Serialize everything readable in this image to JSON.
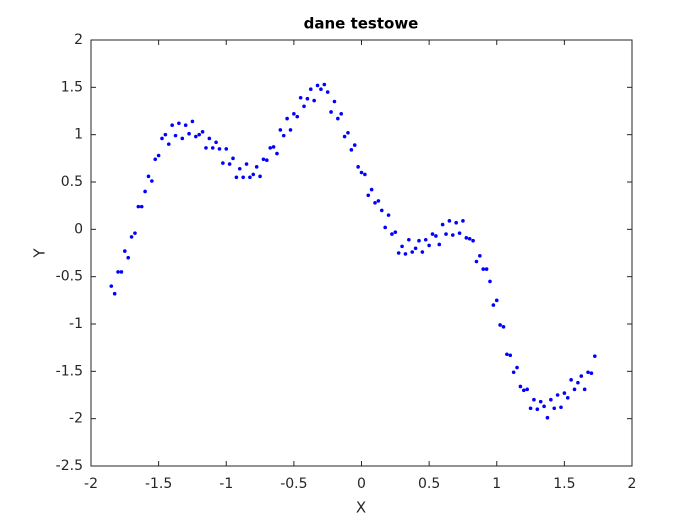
{
  "chart_data": {
    "type": "scatter",
    "title": "dane testowe",
    "x_label": "X",
    "y_label": "Y",
    "color": "#0000ff",
    "x": [
      -1.85,
      -1.825,
      -1.8,
      -1.775,
      -1.75,
      -1.725,
      -1.7,
      -1.675,
      -1.65,
      -1.625,
      -1.6,
      -1.575,
      -1.55,
      -1.525,
      -1.5,
      -1.475,
      -1.45,
      -1.425,
      -1.4,
      -1.375,
      -1.35,
      -1.325,
      -1.3,
      -1.275,
      -1.25,
      -1.225,
      -1.2,
      -1.175,
      -1.15,
      -1.125,
      -1.1,
      -1.075,
      -1.05,
      -1.025,
      -1.0,
      -0.975,
      -0.95,
      -0.925,
      -0.9,
      -0.875,
      -0.85,
      -0.825,
      -0.8,
      -0.775,
      -0.75,
      -0.725,
      -0.7,
      -0.675,
      -0.65,
      -0.625,
      -0.6,
      -0.575,
      -0.55,
      -0.525,
      -0.5,
      -0.475,
      -0.45,
      -0.425,
      -0.4,
      -0.375,
      -0.35,
      -0.325,
      -0.3,
      -0.275,
      -0.25,
      -0.225,
      -0.2,
      -0.175,
      -0.15,
      -0.125,
      -0.1,
      -0.075,
      -0.05,
      -0.025,
      0,
      0.025,
      0.05,
      0.075,
      0.1,
      0.125,
      0.15,
      0.175,
      0.2,
      0.225,
      0.25,
      0.275,
      0.3,
      0.325,
      0.35,
      0.375,
      0.4,
      0.425,
      0.45,
      0.475,
      0.5,
      0.525,
      0.55,
      0.575,
      0.6,
      0.625,
      0.65,
      0.675,
      0.7,
      0.725,
      0.75,
      0.775,
      0.8,
      0.825,
      0.85,
      0.875,
      0.9,
      0.925,
      0.95,
      0.975,
      1.0,
      1.025,
      1.05,
      1.075,
      1.1,
      1.125,
      1.15,
      1.175,
      1.2,
      1.225,
      1.25,
      1.275,
      1.3,
      1.325,
      1.35,
      1.375,
      1.4,
      1.425,
      1.45,
      1.475,
      1.5,
      1.525,
      1.55,
      1.575,
      1.6,
      1.625,
      1.65,
      1.675,
      1.7,
      1.725
    ],
    "values": [
      -0.6,
      -0.68,
      -0.45,
      -0.45,
      -0.23,
      -0.3,
      -0.08,
      -0.04,
      0.24,
      0.24,
      0.4,
      0.56,
      0.51,
      0.74,
      0.78,
      0.96,
      1.0,
      0.9,
      1.1,
      0.99,
      1.12,
      0.96,
      1.1,
      1.01,
      1.14,
      0.98,
      1.0,
      1.03,
      0.86,
      0.96,
      0.86,
      0.92,
      0.85,
      0.7,
      0.85,
      0.69,
      0.75,
      0.55,
      0.64,
      0.55,
      0.69,
      0.55,
      0.58,
      0.66,
      0.56,
      0.74,
      0.73,
      0.86,
      0.87,
      0.8,
      1.05,
      0.99,
      1.17,
      1.05,
      1.22,
      1.19,
      1.39,
      1.3,
      1.38,
      1.48,
      1.36,
      1.52,
      1.48,
      1.53,
      1.45,
      1.24,
      1.35,
      1.17,
      1.22,
      0.98,
      1.02,
      0.84,
      0.89,
      0.66,
      0.6,
      0.58,
      0.36,
      0.42,
      0.28,
      0.3,
      0.2,
      0.02,
      0.15,
      -0.05,
      -0.03,
      -0.25,
      -0.18,
      -0.26,
      -0.11,
      -0.24,
      -0.2,
      -0.12,
      -0.24,
      -0.11,
      -0.17,
      -0.05,
      -0.07,
      -0.16,
      0.05,
      -0.05,
      0.09,
      -0.06,
      0.07,
      -0.04,
      0.09,
      -0.09,
      -0.1,
      -0.12,
      -0.34,
      -0.28,
      -0.42,
      -0.42,
      -0.55,
      -0.8,
      -0.75,
      -1.01,
      -1.03,
      -1.32,
      -1.33,
      -1.51,
      -1.46,
      -1.66,
      -1.7,
      -1.69,
      -1.89,
      -1.8,
      -1.9,
      -1.82,
      -1.87,
      -1.99,
      -1.8,
      -1.89,
      -1.75,
      -1.88,
      -1.73,
      -1.78,
      -1.59,
      -1.69,
      -1.62,
      -1.55,
      -1.69,
      -1.51,
      -1.52,
      -1.34
    ],
    "xlim": [
      -2,
      2
    ],
    "xticks": [
      -2,
      -1.5,
      -1,
      -0.5,
      0,
      0.5,
      1,
      1.5,
      2
    ],
    "ylim": [
      -2.5,
      2
    ],
    "yticks": [
      -2.5,
      -2,
      -1.5,
      -1,
      -0.5,
      0,
      0.5,
      1,
      1.5,
      2
    ]
  }
}
